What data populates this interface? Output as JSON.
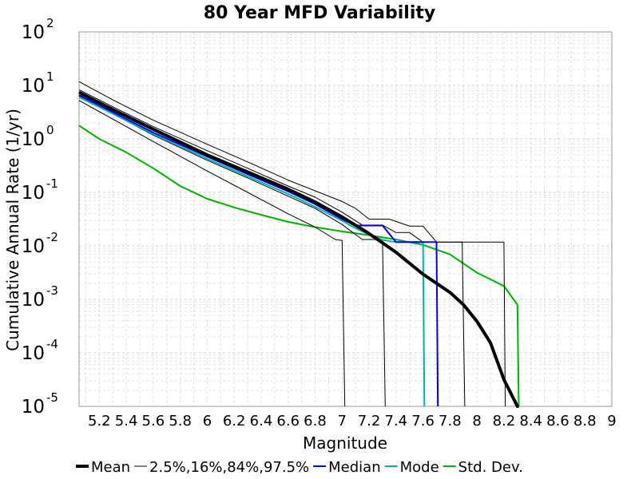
{
  "chart_data": {
    "type": "line",
    "title": "80 Year MFD Variability",
    "xlabel": "Magnitude",
    "ylabel": "Cumulative Annual Rate (1/yr)",
    "xlim": [
      5.05,
      9.0
    ],
    "ylim_log10": [
      -5,
      2
    ],
    "y_scale": "log",
    "grid": true,
    "legend_placement": "bottom",
    "x_tick_labels": [
      {
        "value": 5.2,
        "label": "5.2"
      },
      {
        "value": 5.4,
        "label": "5.4"
      },
      {
        "value": 5.6,
        "label": "5.6"
      },
      {
        "value": 5.8,
        "label": "5.8"
      },
      {
        "value": 6.0,
        "label": "6"
      },
      {
        "value": 6.2,
        "label": "6.2"
      },
      {
        "value": 6.4,
        "label": "6.4"
      },
      {
        "value": 6.6,
        "label": "6.6"
      },
      {
        "value": 6.8,
        "label": "6.8"
      },
      {
        "value": 7.0,
        "label": "7"
      },
      {
        "value": 7.2,
        "label": "7.2"
      },
      {
        "value": 7.4,
        "label": "7.4"
      },
      {
        "value": 7.6,
        "label": "7.6"
      },
      {
        "value": 7.8,
        "label": "7.8"
      },
      {
        "value": 8.0,
        "label": "8"
      },
      {
        "value": 8.2,
        "label": "8.2"
      },
      {
        "value": 8.4,
        "label": "8.4"
      },
      {
        "value": 8.6,
        "label": "8.6"
      },
      {
        "value": 8.8,
        "label": "8.8"
      },
      {
        "value": 9.0,
        "label": "9"
      }
    ],
    "y_tick_labels": [
      {
        "exp": 2,
        "base": "10",
        "sup": "2"
      },
      {
        "exp": 1,
        "base": "10",
        "sup": "1"
      },
      {
        "exp": 0,
        "base": "10",
        "sup": "0"
      },
      {
        "exp": -1,
        "base": "10",
        "sup": "-1"
      },
      {
        "exp": -2,
        "base": "10",
        "sup": "-2"
      },
      {
        "exp": -3,
        "base": "10",
        "sup": "-3"
      },
      {
        "exp": -4,
        "base": "10",
        "sup": "-4"
      },
      {
        "exp": -5,
        "base": "10",
        "sup": "-5"
      }
    ],
    "legend": [
      {
        "label": "Mean",
        "color": "#000000",
        "width": 4
      },
      {
        "label": "2.5%,16%,84%,97.5%",
        "color": "#000000",
        "width": 1
      },
      {
        "label": "Median",
        "color": "#0000ff",
        "width": 2
      },
      {
        "label": "Mode",
        "color": "#00b4b4",
        "width": 2
      },
      {
        "label": "Std. Dev.",
        "color": "#00b400",
        "width": 2
      }
    ],
    "series": [
      {
        "name": "Mean",
        "color": "#000000",
        "width": 4,
        "x": [
          5.05,
          5.3,
          5.6,
          5.8,
          6.0,
          6.3,
          6.6,
          6.8,
          7.0,
          7.2,
          7.4,
          7.6,
          7.8,
          7.9,
          8.0,
          8.1,
          8.2,
          8.3,
          8.31
        ],
        "log10y": [
          0.87,
          0.55,
          0.18,
          -0.06,
          -0.3,
          -0.62,
          -0.94,
          -1.18,
          -1.46,
          -1.77,
          -2.12,
          -2.53,
          -2.87,
          -3.1,
          -3.41,
          -3.81,
          -4.5,
          -5.0,
          -5.0
        ]
      },
      {
        "name": "2.5%",
        "color": "#000000",
        "width": 1,
        "x": [
          5.05,
          5.3,
          5.6,
          6.0,
          6.3,
          6.6,
          6.8,
          6.95,
          7.0,
          7.02
        ],
        "log10y": [
          0.72,
          0.37,
          -0.05,
          -0.6,
          -1.0,
          -1.4,
          -1.65,
          -1.88,
          -1.9,
          -5.0
        ]
      },
      {
        "name": "16%",
        "color": "#000000",
        "width": 1,
        "x": [
          5.05,
          5.3,
          5.6,
          6.0,
          6.3,
          6.6,
          6.8,
          7.0,
          7.15,
          7.3,
          7.32
        ],
        "log10y": [
          0.8,
          0.47,
          0.07,
          -0.4,
          -0.73,
          -1.07,
          -1.3,
          -1.6,
          -1.88,
          -1.88,
          -5.0
        ]
      },
      {
        "name": "84%",
        "color": "#000000",
        "width": 1,
        "x": [
          5.05,
          5.3,
          5.6,
          6.0,
          6.3,
          6.6,
          6.8,
          7.0,
          7.15,
          7.3,
          7.4,
          7.5,
          7.6,
          7.7,
          7.8,
          7.89,
          7.91
        ],
        "log10y": [
          0.92,
          0.6,
          0.23,
          -0.22,
          -0.55,
          -0.88,
          -1.09,
          -1.37,
          -1.61,
          -1.61,
          -1.75,
          -1.75,
          -1.93,
          -1.93,
          -1.93,
          -1.93,
          -5.0
        ]
      },
      {
        "name": "97.5%",
        "color": "#000000",
        "width": 1,
        "x": [
          5.05,
          5.3,
          5.6,
          6.0,
          6.3,
          6.6,
          6.8,
          7.0,
          7.1,
          7.2,
          7.35,
          7.5,
          7.6,
          7.7,
          7.8,
          7.9,
          8.2,
          8.21
        ],
        "log10y": [
          1.07,
          0.73,
          0.35,
          -0.1,
          -0.43,
          -0.77,
          -0.97,
          -1.17,
          -1.3,
          -1.5,
          -1.5,
          -1.63,
          -1.63,
          -1.93,
          -1.93,
          -1.93,
          -1.93,
          -5.0
        ]
      },
      {
        "name": "Median",
        "color": "#0000ff",
        "width": 2,
        "x": [
          5.05,
          5.3,
          5.6,
          6.0,
          6.3,
          6.6,
          6.8,
          7.0,
          7.1,
          7.2,
          7.3,
          7.4,
          7.5,
          7.6,
          7.7,
          7.71
        ],
        "log10y": [
          0.82,
          0.5,
          0.12,
          -0.33,
          -0.66,
          -0.98,
          -1.22,
          -1.5,
          -1.62,
          -1.62,
          -1.62,
          -1.93,
          -1.93,
          -1.93,
          -1.93,
          -5.0
        ]
      },
      {
        "name": "Mode",
        "color": "#00b4b4",
        "width": 2,
        "x": [
          5.05,
          5.3,
          5.6,
          6.0,
          6.3,
          6.6,
          6.8,
          7.0,
          7.1,
          7.2,
          7.3,
          7.4,
          7.5,
          7.6,
          7.61
        ],
        "log10y": [
          0.78,
          0.47,
          0.09,
          -0.37,
          -0.7,
          -1.03,
          -1.27,
          -1.53,
          -1.67,
          -1.79,
          -1.89,
          -1.93,
          -1.93,
          -1.93,
          -5.0
        ]
      },
      {
        "name": "Std. Dev.",
        "color": "#00b400",
        "width": 2,
        "x": [
          5.05,
          5.2,
          5.4,
          5.6,
          5.8,
          6.0,
          6.2,
          6.4,
          6.6,
          6.8,
          7.0,
          7.2,
          7.4,
          7.6,
          7.8,
          8.0,
          8.2,
          8.3,
          8.31
        ],
        "log10y": [
          0.25,
          0.0,
          -0.25,
          -0.55,
          -0.88,
          -1.12,
          -1.28,
          -1.42,
          -1.55,
          -1.65,
          -1.73,
          -1.8,
          -1.88,
          -1.98,
          -2.16,
          -2.5,
          -2.75,
          -3.1,
          -5.0
        ]
      }
    ]
  }
}
